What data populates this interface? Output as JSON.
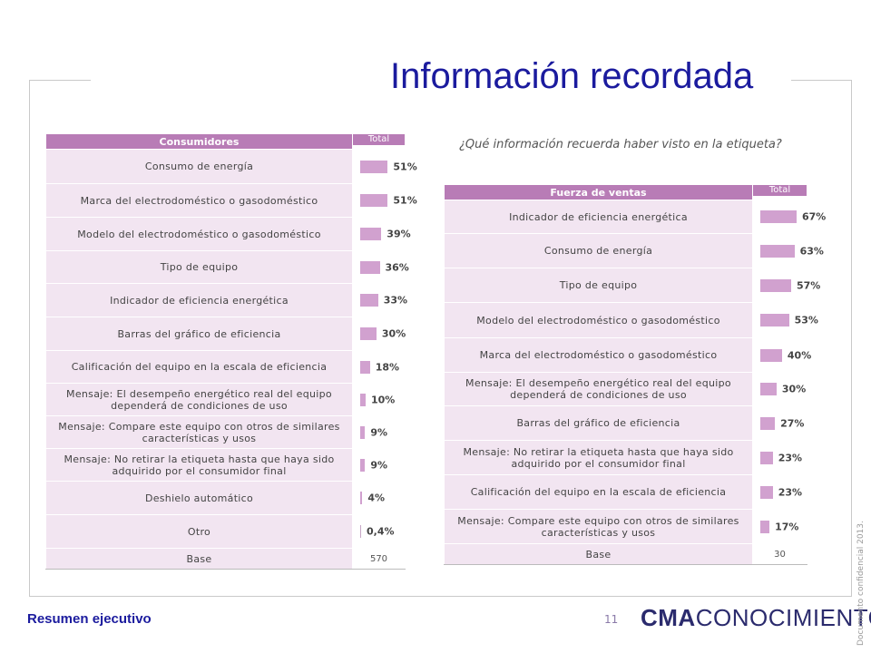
{
  "title": "Información recordada",
  "question": "¿Qué información recuerda haber visto en la etiqueta?",
  "footer": {
    "section": "Resumen ejecutivo",
    "page_number": "11",
    "logo_bold": "CMA",
    "logo_rest": "CONOCIMIENTO",
    "side_text": "Documento confidencial 2013."
  },
  "colors": {
    "header": "#b87cb6",
    "row": "#f2e5f1",
    "bar": "#d1a1cf",
    "title": "#1b1b9e"
  },
  "chart_data": [
    {
      "type": "table",
      "header": "Consumidores",
      "total_label": "Total",
      "rows": [
        {
          "label": "Consumo de energía",
          "value": 51,
          "display": "51%"
        },
        {
          "label": "Marca del electrodoméstico  o gasodoméstico",
          "value": 51,
          "display": "51%"
        },
        {
          "label": "Modelo del electrodoméstico  o gasodoméstico",
          "value": 39,
          "display": "39%"
        },
        {
          "label": "Tipo de equipo",
          "value": 36,
          "display": "36%"
        },
        {
          "label": "Indicador de eficiencia  energética",
          "value": 33,
          "display": "33%"
        },
        {
          "label": "Barras del gráfico de eficiencia",
          "value": 30,
          "display": "30%"
        },
        {
          "label": "Calificación del equipo en la escala de eficiencia",
          "value": 18,
          "display": "18%"
        },
        {
          "label": "Mensaje: El desempeño energético real del equipo dependerá de condiciones de uso",
          "value": 10,
          "display": "10%"
        },
        {
          "label": "Mensaje: Compare este equipo con otros de similares características  y usos",
          "value": 9,
          "display": "9%"
        },
        {
          "label": "Mensaje: No retirar la etiqueta  hasta que haya sido adquirido por el consumidor final",
          "value": 9,
          "display": "9%"
        },
        {
          "label": "Deshielo automático",
          "value": 4,
          "display": "4%"
        },
        {
          "label": "Otro",
          "value": 0.4,
          "display": "0,4%"
        }
      ],
      "base_label": "Base",
      "base_value": "570"
    },
    {
      "type": "table",
      "header": "Fuerza de ventas",
      "total_label": "Total",
      "rows": [
        {
          "label": "Indicador de eficiencia  energética",
          "value": 67,
          "display": "67%"
        },
        {
          "label": "Consumo de energía",
          "value": 63,
          "display": "63%"
        },
        {
          "label": "Tipo de equipo",
          "value": 57,
          "display": "57%"
        },
        {
          "label": "Modelo del electrodoméstico  o gasodoméstico",
          "value": 53,
          "display": "53%"
        },
        {
          "label": "Marca del electrodoméstico  o gasodoméstico",
          "value": 40,
          "display": "40%"
        },
        {
          "label": "Mensaje: El desempeño energético real del equipo dependerá de condiciones de uso",
          "value": 30,
          "display": "30%"
        },
        {
          "label": "Barras del gráfico de eficiencia",
          "value": 27,
          "display": "27%"
        },
        {
          "label": "Mensaje: No retirar la etiqueta  hasta que haya sido adquirido por el consumidor final",
          "value": 23,
          "display": "23%"
        },
        {
          "label": "Calificación del equipo en la escala de eficiencia",
          "value": 23,
          "display": "23%"
        },
        {
          "label": "Mensaje: Compare este equipo con otros de similares características  y usos",
          "value": 17,
          "display": "17%"
        }
      ],
      "base_label": "Base",
      "base_value": "30"
    }
  ]
}
